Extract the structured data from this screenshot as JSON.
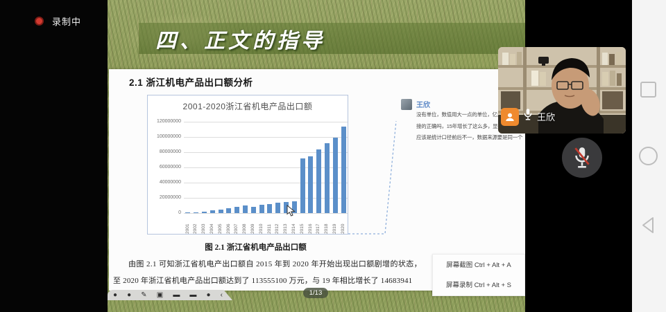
{
  "status_bar": {
    "recording_label": "录制中"
  },
  "slide": {
    "banner_title": "四、正文的指导",
    "heading": "2.1 浙江机电产品出口额分析",
    "caption": "图 2.1 浙江省机电产品出口额",
    "body_line1": "由图 2.1 可知浙江省机电产出口额自 2015 年到 2020 年开始出现出口额剧增的状态，",
    "body_line2": "至 2020 年浙江省机电产品出口额达到了 113555100 万元，与 19 年相比增长了 14683941"
  },
  "chart_data": {
    "type": "bar",
    "title": "2001-2020浙江省机电产品出口额",
    "categories": [
      "2001",
      "2002",
      "2003",
      "2004",
      "2005",
      "2006",
      "2007",
      "2008",
      "2009",
      "2010",
      "2011",
      "2012",
      "2013",
      "2014",
      "2015",
      "2016",
      "2017",
      "2018",
      "2019",
      "2020"
    ],
    "values": [
      900000,
      1100000,
      2200000,
      3600000,
      4600000,
      6100000,
      8200000,
      10400000,
      7900000,
      11000000,
      12200000,
      14000000,
      14700000,
      15900000,
      72000000,
      75000000,
      84000000,
      92000000,
      98900000,
      113555100
    ],
    "xlabel": "",
    "ylabel": "",
    "ylim": [
      0,
      120000000
    ],
    "y_ticks": [
      120000000,
      100000000,
      80000000,
      60000000,
      40000000,
      20000000,
      0
    ],
    "grid": true,
    "legend_position": "none",
    "bar_color": "#5b8fc9"
  },
  "chat": {
    "sender": "王欣",
    "lines": [
      "没有单位，数值用大一点的单位，亿元",
      "接的正确吗，15年增长了这么多，显得",
      "应该是统计口径前后不一，数据来源要是同一个"
    ]
  },
  "shortcut_menu": {
    "items": [
      "屏幕截图 Ctrl + Alt + A",
      "屏幕录制 Ctrl + Alt + S"
    ]
  },
  "toolbar": {
    "icons": [
      {
        "name": "zoom-out-icon",
        "glyph": "●"
      },
      {
        "name": "zoom-in-icon",
        "glyph": "●"
      },
      {
        "name": "pen-icon",
        "glyph": "✎"
      },
      {
        "name": "screenshot-icon",
        "glyph": "▣"
      },
      {
        "name": "keyboard-icon",
        "glyph": "▬"
      },
      {
        "name": "whiteboard-icon",
        "glyph": "▬"
      },
      {
        "name": "record-icon",
        "glyph": "●"
      },
      {
        "name": "collapse-icon",
        "glyph": "‹"
      }
    ]
  },
  "pager": {
    "current": "1/13"
  },
  "video": {
    "participant_name": "王欣"
  },
  "colors": {
    "bar_blue": "#5b8fc9",
    "banner_green": "#5f7a34",
    "badge_orange": "#ef8a2e",
    "record_red": "#d23a30",
    "mute_slash_red": "#c23b2e"
  }
}
